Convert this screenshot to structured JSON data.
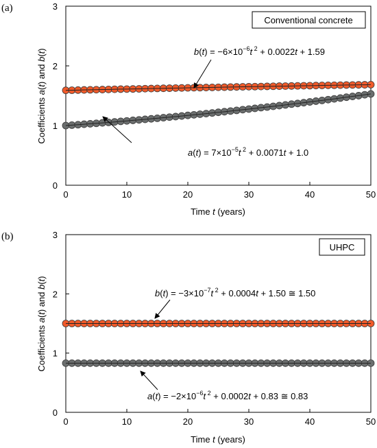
{
  "chart_data": [
    {
      "panel_label": "(a)",
      "type": "scatter",
      "legend_title": "Conventional concrete",
      "legend_position": "top-right",
      "xlabel": "Time t (years)",
      "ylabel": "Coefficients a(t) and b(t)",
      "xlim": [
        0,
        50
      ],
      "ylim": [
        0,
        3
      ],
      "xticks": [
        "0",
        "10",
        "20",
        "30",
        "40",
        "50"
      ],
      "yticks": [
        "0",
        "1",
        "2",
        "3"
      ],
      "grid": false,
      "x": [
        0,
        1,
        2,
        3,
        4,
        5,
        6,
        7,
        8,
        9,
        10,
        11,
        12,
        13,
        14,
        15,
        16,
        17,
        18,
        19,
        20,
        21,
        22,
        23,
        24,
        25,
        26,
        27,
        28,
        29,
        30,
        31,
        32,
        33,
        34,
        35,
        36,
        37,
        38,
        39,
        40,
        41,
        42,
        43,
        44,
        45,
        46,
        47,
        48,
        49,
        50
      ],
      "series": [
        {
          "name": "b(t)",
          "color": "#f05a2a",
          "y": [
            1.59,
            1.592,
            1.594,
            1.597,
            1.599,
            1.601,
            1.603,
            1.605,
            1.608,
            1.61,
            1.611,
            1.613,
            1.615,
            1.618,
            1.62,
            1.622,
            1.624,
            1.626,
            1.628,
            1.63,
            1.632,
            1.634,
            1.635,
            1.637,
            1.639,
            1.641,
            1.643,
            1.645,
            1.647,
            1.649,
            1.651,
            1.652,
            1.654,
            1.656,
            1.658,
            1.66,
            1.661,
            1.663,
            1.665,
            1.667,
            1.668,
            1.67,
            1.672,
            1.674,
            1.675,
            1.677,
            1.679,
            1.68,
            1.682,
            1.683,
            1.685
          ]
        },
        {
          "name": "a(t)",
          "color": "#6b6e6e",
          "y": [
            1.0,
            1.007,
            1.014,
            1.022,
            1.03,
            1.037,
            1.045,
            1.053,
            1.061,
            1.07,
            1.078,
            1.087,
            1.095,
            1.104,
            1.113,
            1.122,
            1.132,
            1.141,
            1.15,
            1.16,
            1.17,
            1.18,
            1.19,
            1.2,
            1.211,
            1.222,
            1.232,
            1.243,
            1.254,
            1.266,
            1.276,
            1.288,
            1.3,
            1.31,
            1.322,
            1.334,
            1.346,
            1.359,
            1.37,
            1.383,
            1.396,
            1.409,
            1.421,
            1.434,
            1.447,
            1.461,
            1.475,
            1.488,
            1.501,
            1.516,
            1.53
          ]
        }
      ],
      "annotations": [
        {
          "series": "b(t)",
          "func": "b(t)",
          "eq": " = −6×10",
          "exp": "−6",
          "rest_pre": "t",
          "rest_exp": "2",
          "rest": " + 0.0022t + 1.59"
        },
        {
          "series": "a(t)",
          "func": "a(t)",
          "eq": " = 7×10",
          "exp": "−5",
          "rest_pre": "t",
          "rest_exp": "2",
          "rest": " + 0.0071t + 1.0"
        }
      ]
    },
    {
      "panel_label": "(b)",
      "type": "scatter",
      "legend_title": "UHPC",
      "legend_position": "top-right",
      "xlabel": "Time t (years)",
      "ylabel": "Coefficients a(t) and b(t)",
      "xlim": [
        0,
        50
      ],
      "ylim": [
        0,
        3
      ],
      "xticks": [
        "0",
        "10",
        "20",
        "30",
        "40",
        "50"
      ],
      "yticks": [
        "0",
        "1",
        "2",
        "3"
      ],
      "grid": false,
      "x": [
        0,
        1,
        2,
        3,
        4,
        5,
        6,
        7,
        8,
        9,
        10,
        11,
        12,
        13,
        14,
        15,
        16,
        17,
        18,
        19,
        20,
        21,
        22,
        23,
        24,
        25,
        26,
        27,
        28,
        29,
        30,
        31,
        32,
        33,
        34,
        35,
        36,
        37,
        38,
        39,
        40,
        41,
        42,
        43,
        44,
        45,
        46,
        47,
        48,
        49,
        50
      ],
      "series": [
        {
          "name": "b(t)",
          "color": "#f05a2a",
          "y": [
            1.5,
            1.5,
            1.5,
            1.5,
            1.5,
            1.5,
            1.5,
            1.5,
            1.5,
            1.5,
            1.5,
            1.5,
            1.5,
            1.5,
            1.5,
            1.5,
            1.5,
            1.5,
            1.5,
            1.5,
            1.5,
            1.5,
            1.5,
            1.5,
            1.5,
            1.5,
            1.5,
            1.5,
            1.5,
            1.5,
            1.5,
            1.5,
            1.5,
            1.5,
            1.5,
            1.5,
            1.5,
            1.5,
            1.5,
            1.5,
            1.5,
            1.5,
            1.5,
            1.5,
            1.5,
            1.5,
            1.5,
            1.5,
            1.5,
            1.5,
            1.5
          ]
        },
        {
          "name": "a(t)",
          "color": "#6b6e6e",
          "y": [
            0.83,
            0.83,
            0.83,
            0.83,
            0.83,
            0.83,
            0.83,
            0.83,
            0.83,
            0.83,
            0.83,
            0.83,
            0.83,
            0.83,
            0.83,
            0.83,
            0.83,
            0.83,
            0.83,
            0.83,
            0.83,
            0.83,
            0.83,
            0.83,
            0.83,
            0.83,
            0.83,
            0.83,
            0.83,
            0.83,
            0.83,
            0.83,
            0.83,
            0.83,
            0.83,
            0.83,
            0.83,
            0.83,
            0.83,
            0.83,
            0.83,
            0.83,
            0.83,
            0.83,
            0.83,
            0.83,
            0.83,
            0.83,
            0.83,
            0.83,
            0.83
          ]
        }
      ],
      "annotations": [
        {
          "series": "b(t)",
          "func": "b(t)",
          "eq": " = −3×10",
          "exp": "−7",
          "rest_pre": "t",
          "rest_exp": "2",
          "rest": " + 0.0004t + 1.50 ≅ 1.50"
        },
        {
          "series": "a(t)",
          "func": "a(t)",
          "eq": " = −2×10",
          "exp": "−6",
          "rest_pre": "t",
          "rest_exp": "2",
          "rest": " + 0.0002t + 0.83 ≅ 0.83"
        }
      ]
    }
  ]
}
